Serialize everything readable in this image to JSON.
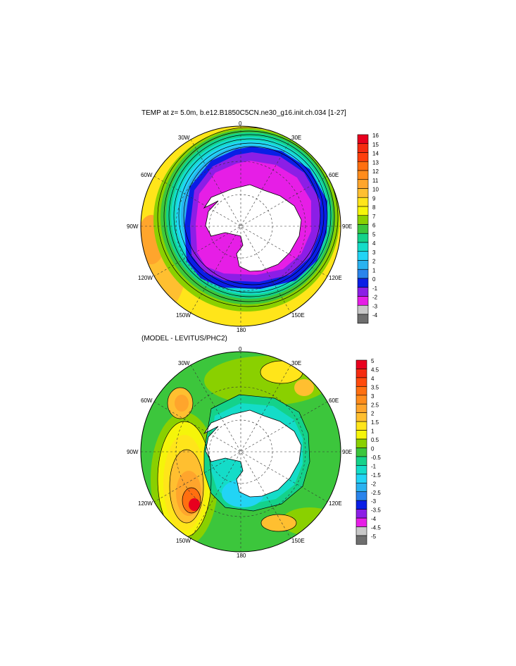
{
  "chart_data": [
    {
      "type": "heatmap",
      "projection": "south-polar-stereographic",
      "title": "TEMP at z=   5.0m, b.e12.B1850C5CN.ne30_g16.init.ch.034 [1-27]",
      "lon_labels": [
        "0",
        "30E",
        "60E",
        "90E",
        "120E",
        "150E",
        "180",
        "150W",
        "120W",
        "90W",
        "60W",
        "30W"
      ],
      "colorbar_levels": [
        "16",
        "15",
        "14",
        "13",
        "12",
        "11",
        "10",
        "9",
        "8",
        "7",
        "6",
        "5",
        "4",
        "3",
        "2",
        "1",
        "0",
        "-1",
        "-2",
        "-3",
        "-4"
      ],
      "colorbar_colors": [
        "#e8001e",
        "#f52b10",
        "#ff3f0c",
        "#ff6f10",
        "#ff8c1c",
        "#ffa52c",
        "#ffbf30",
        "#ffe51a",
        "#f5f50a",
        "#8ad000",
        "#3cc63c",
        "#14d28a",
        "#14dcc8",
        "#22d4f5",
        "#2ab2f0",
        "#2a84ec",
        "#0a1ee6",
        "#8c1ee6",
        "#e61ee6",
        "#c8c8c8",
        "#6e6e6e"
      ],
      "field_description": "Sea surface temperature (degC), coldest near Antarctic coast (-2 to -1), increasing northward to ~10-11 at the edge"
    },
    {
      "type": "heatmap",
      "projection": "south-polar-stereographic",
      "title": "(MODEL - LEVITUS/PHC2)",
      "lon_labels": [
        "0",
        "30E",
        "60E",
        "90E",
        "120E",
        "150E",
        "180",
        "150W",
        "120W",
        "90W",
        "60W",
        "30W"
      ],
      "colorbar_levels": [
        "5",
        "4.5",
        "4",
        "3.5",
        "3",
        "2.5",
        "2",
        "1.5",
        "1",
        "0.5",
        "0",
        "-0.5",
        "-1",
        "-1.5",
        "-2",
        "-2.5",
        "-3",
        "-3.5",
        "-4",
        "-4.5",
        "-5"
      ],
      "colorbar_colors": [
        "#e8001e",
        "#f52b10",
        "#ff4a0c",
        "#ff6f10",
        "#ff8c1c",
        "#ffa52c",
        "#ffbf30",
        "#ffe51a",
        "#f5f50a",
        "#8ad000",
        "#3cc63c",
        "#14d28a",
        "#14dcc8",
        "#22d4f5",
        "#2ab2f0",
        "#2a84ec",
        "#0a1ee6",
        "#8c1ee6",
        "#e61ee6",
        "#c8c8c8",
        "#6e6e6e"
      ],
      "field_description": "Model minus observed SST difference (degC); mostly -1 to +1, warm bias up to ~5 in South Pacific near 120W"
    }
  ],
  "colors": {
    "land": "#ffffff",
    "outline": "#000000"
  }
}
